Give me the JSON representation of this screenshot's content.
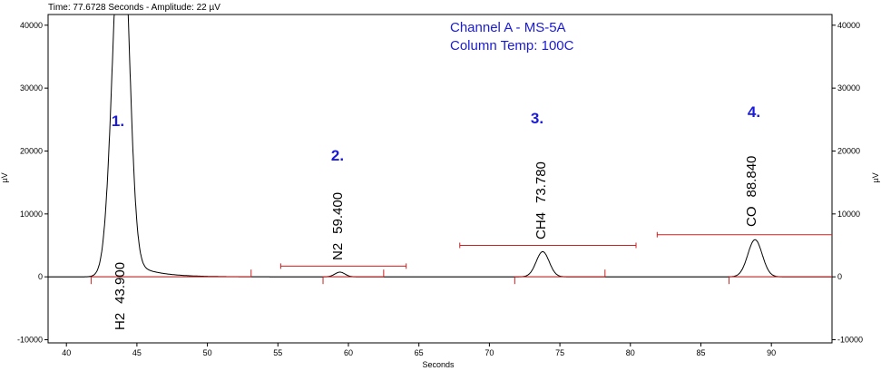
{
  "status": "Time:  77.6728 Seconds - Amplitude:  22 µV",
  "chart_data": {
    "type": "line",
    "title": "Channel A - MS-5A",
    "subtitle": "Column Temp: 100C",
    "xlabel": "Seconds",
    "ylabel": "µV",
    "xlim": [
      38.7,
      94.3
    ],
    "ylim": [
      -10500,
      41700
    ],
    "x_ticks": [
      40,
      45,
      50,
      55,
      60,
      65,
      70,
      75,
      80,
      85,
      90
    ],
    "y_ticks": [
      -10000,
      0,
      10000,
      20000,
      30000,
      40000
    ],
    "colors": {
      "signal": "#000000",
      "baseline": "#cc2020",
      "labels": "#1a1adc"
    },
    "peaks": [
      {
        "number": "1.",
        "name": "H2",
        "retention_time": "43.900",
        "apex_x": 43.9,
        "apex_y": 41700,
        "baseline_start": 41.75,
        "baseline_end": 53.1
      },
      {
        "number": "2.",
        "name": "N2",
        "retention_time": "59.400",
        "apex_x": 59.4,
        "apex_y": 750,
        "baseline_start": 58.2,
        "baseline_end": 62.5
      },
      {
        "number": "3.",
        "name": "CH4",
        "retention_time": "73.780",
        "apex_x": 73.78,
        "apex_y": 4000,
        "baseline_start": 71.8,
        "baseline_end": 78.2
      },
      {
        "number": "4.",
        "name": "CO",
        "retention_time": "88.840",
        "apex_x": 88.84,
        "apex_y": 5900,
        "baseline_start": 87.0,
        "baseline_end": 94.3
      }
    ],
    "brackets": [
      {
        "start": 55.2,
        "end": 64.1,
        "y": 1700
      },
      {
        "start": 67.9,
        "end": 80.4,
        "y": 5000
      },
      {
        "start": 81.9,
        "end": 94.3,
        "y": 6700
      }
    ]
  }
}
